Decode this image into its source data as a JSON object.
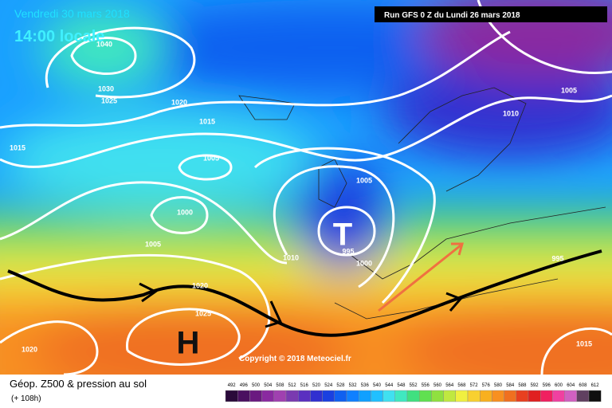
{
  "header": {
    "date": "Vendredi 30 mars 2018",
    "time": "14:00 locale",
    "run": "Run GFS 0 Z du Lundi 26 mars 2018"
  },
  "isobar_labels": [
    1040,
    1030,
    1025,
    1020,
    1015,
    1015,
    1005,
    1000,
    1005,
    1010,
    995,
    1000,
    1005,
    1010,
    1005,
    1020,
    1025,
    1020,
    1015,
    995
  ],
  "centers": {
    "low": "T",
    "high": "H"
  },
  "copyright": "Copyright © 2018 Meteociel.fr",
  "footer": {
    "title": "Géop. Z500 & pression au sol",
    "lead": "(+ 108h)"
  },
  "scale": {
    "values": [
      492,
      496,
      500,
      504,
      508,
      512,
      516,
      520,
      524,
      528,
      532,
      536,
      540,
      544,
      548,
      552,
      556,
      560,
      564,
      568,
      572,
      576,
      580,
      584,
      588,
      592,
      596,
      600,
      604,
      608,
      612
    ],
    "colors": [
      "#2a0a3a",
      "#4a1060",
      "#6a1a80",
      "#8a2aa0",
      "#a040b0",
      "#7a3ab0",
      "#5a30c0",
      "#3030d0",
      "#1a40e0",
      "#1060f0",
      "#1080ff",
      "#10a0ff",
      "#20c0ff",
      "#40e0f0",
      "#40e8c0",
      "#40e080",
      "#60e050",
      "#90e040",
      "#c0e840",
      "#f0f040",
      "#f8d030",
      "#f8b020",
      "#f89020",
      "#f07020",
      "#e84020",
      "#e02020",
      "#f02060",
      "#f040a0",
      "#d060c0",
      "#604060",
      "#101010"
    ]
  }
}
